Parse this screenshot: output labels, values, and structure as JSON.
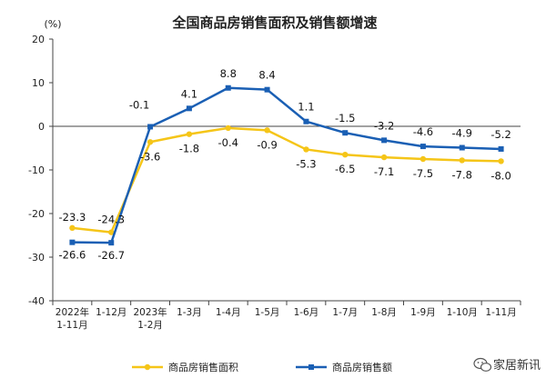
{
  "chart_data": {
    "type": "line",
    "title": "全国商品房销售面积及销售额增速",
    "y_unit": "(%)",
    "ylim": [
      -40,
      20
    ],
    "yticks": [
      20,
      10,
      0,
      -10,
      -20,
      -30,
      -40
    ],
    "categories": [
      [
        "2022年",
        "1-11月"
      ],
      [
        "1-12月"
      ],
      [
        "2023年",
        "1-2月"
      ],
      [
        "1-3月"
      ],
      [
        "1-4月"
      ],
      [
        "1-5月"
      ],
      [
        "1-6月"
      ],
      [
        "1-7月"
      ],
      [
        "1-8月"
      ],
      [
        "1-9月"
      ],
      [
        "1-10月"
      ],
      [
        "1-11月"
      ]
    ],
    "series": [
      {
        "name": "商品房销售面积",
        "color": "#f5c518",
        "values": [
          -23.3,
          -24.3,
          -3.6,
          -1.8,
          -0.4,
          -0.9,
          -5.3,
          -6.5,
          -7.1,
          -7.5,
          -7.8,
          -8.0
        ],
        "labels": [
          "-23.3",
          "-24.3",
          "-3.6",
          "-1.8",
          "-0.4",
          "-0.9",
          "-5.3",
          "-6.5",
          "-7.1",
          "-7.5",
          "-7.8",
          "-8.0"
        ]
      },
      {
        "name": "商品房销售额",
        "color": "#1a5fb4",
        "values": [
          -26.6,
          -26.7,
          -0.1,
          4.1,
          8.8,
          8.4,
          1.1,
          -1.5,
          -3.2,
          -4.6,
          -4.9,
          -5.2
        ],
        "labels": [
          "-26.6",
          "-26.7",
          "-0.1",
          "4.1",
          "8.8",
          "8.4",
          "1.1",
          "-1.5",
          "-3.2",
          "-4.6",
          "-4.9",
          "-5.2"
        ]
      }
    ],
    "grid": false,
    "legend_position": "bottom"
  },
  "watermark": {
    "text": "家居新讯",
    "icon": "wechat-icon"
  }
}
